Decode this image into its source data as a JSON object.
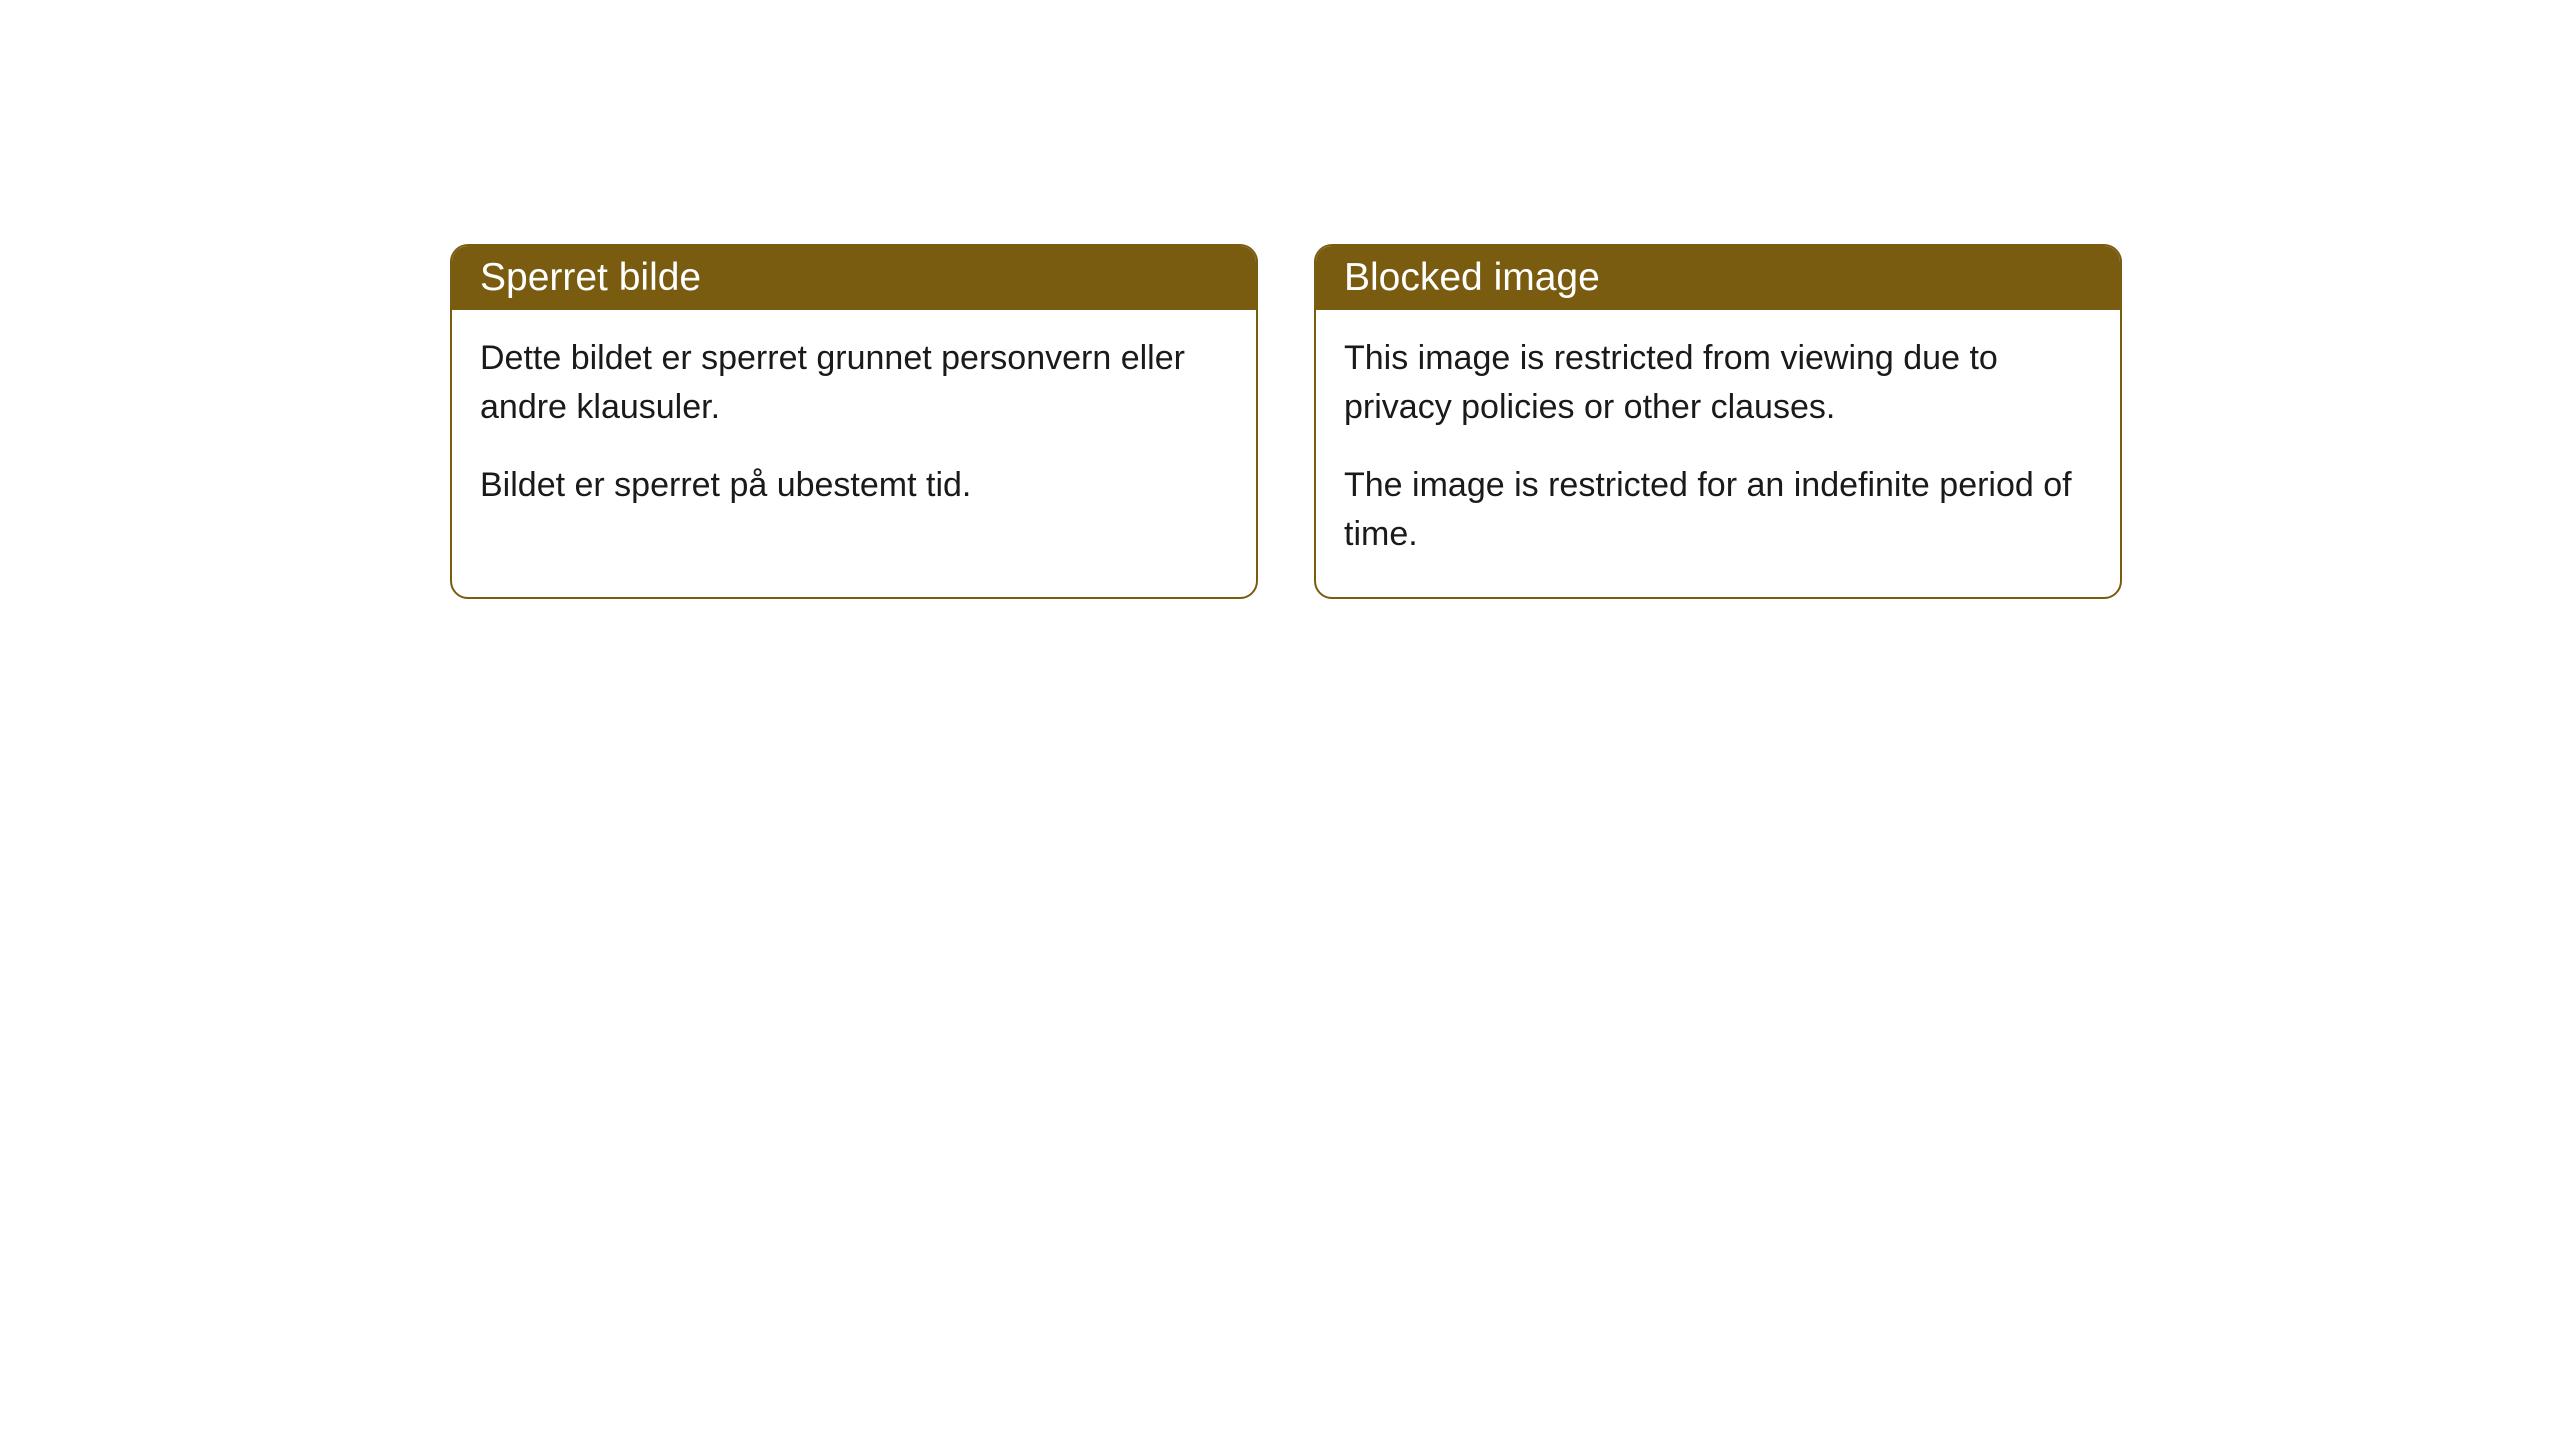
{
  "cards": [
    {
      "title": "Sperret bilde",
      "paragraph1": "Dette bildet er sperret grunnet personvern eller andre klausuler.",
      "paragraph2": "Bildet er sperret på ubestemt tid."
    },
    {
      "title": "Blocked image",
      "paragraph1": "This image is restricted from viewing due to privacy policies or other clauses.",
      "paragraph2": "The image is restricted for an indefinite period of time."
    }
  ],
  "style": {
    "header_background": "#7a5c11",
    "header_text_color": "#ffffff",
    "border_color": "#7a5c11",
    "body_text_color": "#1a1a1a",
    "card_background": "#ffffff",
    "page_background": "#ffffff",
    "border_radius": 18,
    "title_fontsize": 39,
    "body_fontsize": 34
  }
}
